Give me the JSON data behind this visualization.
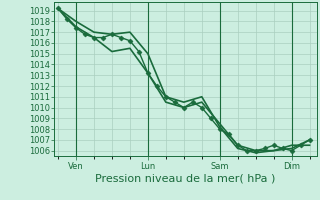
{
  "background_color": "#cceee0",
  "grid_color": "#aacfbf",
  "line_color": "#1a6b3c",
  "xlabel": "Pression niveau de la mer( hPa )",
  "ylim": [
    1005.5,
    1019.8
  ],
  "yticks": [
    1006,
    1007,
    1008,
    1009,
    1010,
    1011,
    1012,
    1013,
    1014,
    1015,
    1016,
    1017,
    1018,
    1019
  ],
  "series": [
    {
      "x": [
        0.0,
        0.25,
        0.5,
        0.75,
        1.0,
        1.25,
        1.5,
        1.75,
        2.0,
        2.25,
        2.5,
        2.75,
        3.0,
        3.25,
        3.5,
        3.75,
        4.0,
        4.25,
        4.5,
        4.75,
        5.0,
        5.25,
        5.5,
        5.75,
        6.0,
        6.25,
        6.5,
        6.75,
        7.0
      ],
      "y": [
        1019.2,
        1018.2,
        1017.4,
        1016.8,
        1016.5,
        1016.5,
        1016.8,
        1016.5,
        1016.2,
        1015.2,
        1013.2,
        1012.0,
        1011.0,
        1010.5,
        1010.0,
        1010.5,
        1010.0,
        1009.0,
        1008.0,
        1007.5,
        1006.5,
        1006.0,
        1006.0,
        1006.2,
        1006.5,
        1006.2,
        1006.0,
        1006.5,
        1007.0
      ],
      "marker": "D",
      "markersize": 2.5,
      "linewidth": 1.0
    },
    {
      "x": [
        0.0,
        0.5,
        1.0,
        1.5,
        2.0,
        2.5,
        3.0,
        3.5,
        4.0,
        4.5,
        5.0,
        5.5,
        6.0,
        6.5,
        7.0
      ],
      "y": [
        1019.2,
        1018.0,
        1017.0,
        1016.8,
        1017.0,
        1015.0,
        1011.0,
        1010.5,
        1011.0,
        1008.2,
        1006.2,
        1005.8,
        1006.0,
        1006.2,
        1007.0
      ],
      "marker": null,
      "linewidth": 1.2
    },
    {
      "x": [
        0.0,
        0.5,
        1.0,
        1.5,
        2.0,
        2.5,
        3.0,
        3.5,
        4.0,
        4.5,
        5.0,
        5.5,
        6.0,
        6.5,
        7.0
      ],
      "y": [
        1019.2,
        1017.5,
        1016.5,
        1015.2,
        1015.5,
        1013.2,
        1010.5,
        1010.0,
        1010.5,
        1008.5,
        1006.5,
        1006.0,
        1006.0,
        1006.5,
        1006.5
      ],
      "marker": null,
      "linewidth": 1.2
    }
  ],
  "xlim": [
    -0.1,
    7.2
  ],
  "xtick_positions": [
    0.5,
    2.5,
    4.5,
    6.5
  ],
  "xtick_labels": [
    "Ven",
    "Lun",
    "Sam",
    "Dim"
  ],
  "vline_positions": [
    0.5,
    2.5,
    4.5,
    6.5
  ],
  "tick_fontsize": 6,
  "label_fontsize": 8
}
